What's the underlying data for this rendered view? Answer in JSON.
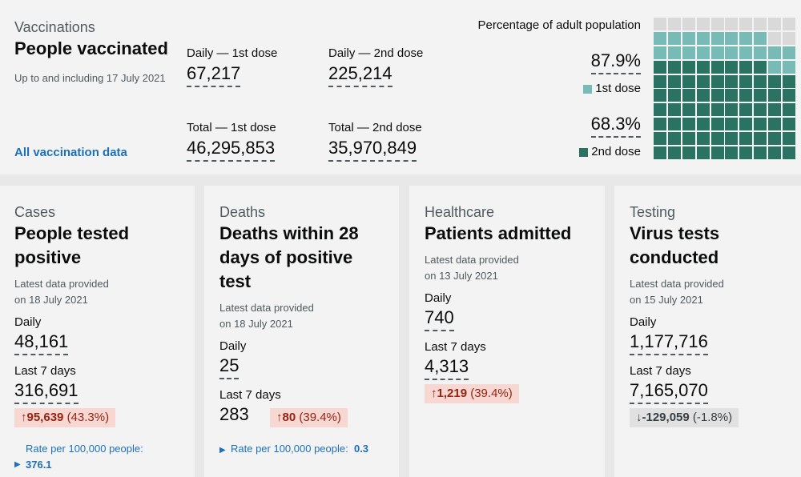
{
  "vaccinations": {
    "category": "Vaccinations",
    "title": "People vaccinated",
    "subtitle": "Up to and including 17 July 2021",
    "link": "All vaccination data",
    "daily_first_label": "Daily — 1st dose",
    "daily_first_value": "67,217",
    "daily_second_label": "Daily — 2nd dose",
    "daily_second_value": "225,214",
    "total_first_label": "Total — 1st dose",
    "total_first_value": "46,295,853",
    "total_second_label": "Total — 2nd dose",
    "total_second_value": "35,970,849",
    "pct_heading": "Percentage of adult population",
    "first_dose_pct": "87.9%",
    "first_dose_label": "1st dose",
    "second_dose_pct": "68.3%",
    "second_dose_label": "2nd dose",
    "waffle": {
      "first_dose_fraction": 0.879,
      "second_dose_fraction": 0.683
    },
    "colors": {
      "first": "#77bab6",
      "second": "#2a7261",
      "empty": "#d9d9d9"
    }
  },
  "cards": [
    {
      "category": "Cases",
      "title": "People tested positive",
      "latest_label": "Latest data provided",
      "latest_date": "on 18 July 2021",
      "daily_label": "Daily",
      "daily_value": "48,161",
      "week_label": "Last 7 days",
      "week_value": "316,691",
      "change_arrow": "↑",
      "change_value": "95,639",
      "change_pct": "(43.3%)",
      "rate_label": "Rate per 100,000 people:",
      "rate_value": "376.1"
    },
    {
      "category": "Deaths",
      "title": "Deaths within 28 days of positive test",
      "latest_label": "Latest data provided",
      "latest_date": "on 18 July 2021",
      "daily_label": "Daily",
      "daily_value": "25",
      "week_label": "Last 7 days",
      "week_value": "283",
      "change_arrow": "↑",
      "change_value": "80",
      "change_pct": "(39.4%)",
      "rate_label": "Rate per 100,000 people:",
      "rate_value": "0.3"
    },
    {
      "category": "Healthcare",
      "title": "Patients admitted",
      "latest_label": "Latest data provided",
      "latest_date": "on 13 July 2021",
      "daily_label": "Daily",
      "daily_value": "740",
      "week_label": "Last 7 days",
      "week_value": "4,313",
      "change_arrow": "↑",
      "change_value": "1,219",
      "change_pct": "(39.4%)"
    },
    {
      "category": "Testing",
      "title": "Virus tests conducted",
      "latest_label": "Latest data provided",
      "latest_date": "on 15 July 2021",
      "daily_label": "Daily",
      "daily_value": "1,177,716",
      "week_label": "Last 7 days",
      "week_value": "7,165,070",
      "change_arrow": "↓",
      "change_value": "-129,059",
      "change_pct": "(-1.8%)"
    }
  ],
  "icons": {
    "rate_toggle": "triangle-right-icon",
    "up": "arrow-up-icon",
    "down": "arrow-down-icon"
  }
}
